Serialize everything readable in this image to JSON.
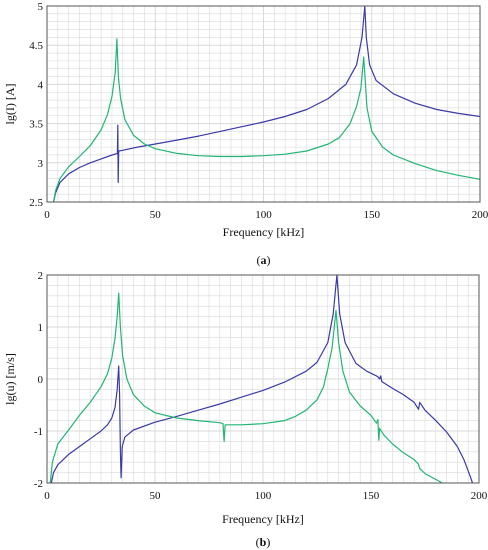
{
  "colors": {
    "blue": "#3a3aa8",
    "green": "#22b573",
    "grid": "#d9d9d9",
    "axis": "#555555"
  },
  "chart_data": [
    {
      "type": "line",
      "caption_prefix": "(",
      "caption_letter": "a",
      "caption_suffix": ")",
      "xlabel": "Frequency [kHz]",
      "ylabel": "lg(I) [A]",
      "xlim": [
        0,
        200
      ],
      "ylim": [
        2.5,
        5
      ],
      "xticks": [
        0,
        50,
        100,
        150,
        200
      ],
      "yticks": [
        2.5,
        3,
        3.5,
        4,
        4.5,
        5
      ],
      "ytick_labels": [
        "2.5",
        "3",
        "3.5",
        "4",
        "4.5",
        "5"
      ],
      "grid": true,
      "series": [
        {
          "color": "blue",
          "points": [
            [
              3,
              2.5
            ],
            [
              4,
              2.62
            ],
            [
              6,
              2.75
            ],
            [
              10,
              2.86
            ],
            [
              15,
              2.94
            ],
            [
              20,
              3.0
            ],
            [
              25,
              3.05
            ],
            [
              30,
              3.1
            ],
            [
              32.5,
              3.12
            ],
            [
              32.7,
              3.48
            ],
            [
              32.9,
              2.75
            ],
            [
              33.1,
              3.15
            ],
            [
              35,
              3.16
            ],
            [
              40,
              3.19
            ],
            [
              50,
              3.24
            ],
            [
              60,
              3.29
            ],
            [
              70,
              3.34
            ],
            [
              80,
              3.4
            ],
            [
              90,
              3.46
            ],
            [
              100,
              3.52
            ],
            [
              110,
              3.59
            ],
            [
              120,
              3.68
            ],
            [
              130,
              3.82
            ],
            [
              138,
              4.0
            ],
            [
              143,
              4.25
            ],
            [
              145.5,
              4.6
            ],
            [
              146.8,
              5.0
            ],
            [
              147.5,
              4.6
            ],
            [
              149,
              4.25
            ],
            [
              152,
              4.05
            ],
            [
              160,
              3.88
            ],
            [
              170,
              3.76
            ],
            [
              180,
              3.68
            ],
            [
              190,
              3.63
            ],
            [
              200,
              3.59
            ]
          ]
        },
        {
          "color": "green",
          "points": [
            [
              3,
              2.5
            ],
            [
              4,
              2.65
            ],
            [
              6,
              2.8
            ],
            [
              10,
              2.95
            ],
            [
              15,
              3.08
            ],
            [
              20,
              3.22
            ],
            [
              25,
              3.42
            ],
            [
              28,
              3.62
            ],
            [
              30,
              3.85
            ],
            [
              31.5,
              4.15
            ],
            [
              32.3,
              4.58
            ],
            [
              33,
              4.1
            ],
            [
              34,
              3.82
            ],
            [
              36,
              3.55
            ],
            [
              40,
              3.35
            ],
            [
              45,
              3.24
            ],
            [
              50,
              3.18
            ],
            [
              60,
              3.12
            ],
            [
              70,
              3.09
            ],
            [
              80,
              3.08
            ],
            [
              90,
              3.08
            ],
            [
              100,
              3.09
            ],
            [
              110,
              3.11
            ],
            [
              120,
              3.15
            ],
            [
              130,
              3.24
            ],
            [
              135,
              3.32
            ],
            [
              140,
              3.5
            ],
            [
              143,
              3.72
            ],
            [
              145,
              3.95
            ],
            [
              146.3,
              4.35
            ],
            [
              147.8,
              3.7
            ],
            [
              150,
              3.4
            ],
            [
              155,
              3.2
            ],
            [
              160,
              3.1
            ],
            [
              170,
              2.99
            ],
            [
              180,
              2.9
            ],
            [
              190,
              2.84
            ],
            [
              200,
              2.79
            ]
          ]
        }
      ]
    },
    {
      "type": "line",
      "caption_prefix": "(",
      "caption_letter": "b",
      "caption_suffix": ")",
      "xlabel": "Frequency [kHz]",
      "ylabel": "lg(u) [m/s]",
      "xlim": [
        0,
        200
      ],
      "ylim": [
        -2,
        2
      ],
      "xticks": [
        0,
        50,
        100,
        150,
        200
      ],
      "yticks": [
        -2,
        -1,
        0,
        1,
        2
      ],
      "ytick_labels": [
        "-2",
        "-1",
        "0",
        "1",
        "2"
      ],
      "grid": true,
      "series": [
        {
          "color": "blue",
          "points": [
            [
              2,
              -2
            ],
            [
              3,
              -1.8
            ],
            [
              5,
              -1.65
            ],
            [
              10,
              -1.45
            ],
            [
              15,
              -1.3
            ],
            [
              20,
              -1.15
            ],
            [
              25,
              -1.0
            ],
            [
              28,
              -0.88
            ],
            [
              30,
              -0.75
            ],
            [
              31.5,
              -0.55
            ],
            [
              32.5,
              -0.2
            ],
            [
              33.2,
              0.25
            ],
            [
              33.6,
              -0.3
            ],
            [
              34,
              -1.4
            ],
            [
              34.3,
              -1.9
            ],
            [
              34.8,
              -1.3
            ],
            [
              36,
              -1.12
            ],
            [
              40,
              -0.98
            ],
            [
              50,
              -0.83
            ],
            [
              60,
              -0.72
            ],
            [
              70,
              -0.6
            ],
            [
              80,
              -0.48
            ],
            [
              90,
              -0.35
            ],
            [
              100,
              -0.22
            ],
            [
              110,
              -0.06
            ],
            [
              120,
              0.15
            ],
            [
              125,
              0.32
            ],
            [
              130,
              0.7
            ],
            [
              132.5,
              1.25
            ],
            [
              134.2,
              2.0
            ],
            [
              135.5,
              1.25
            ],
            [
              138,
              0.7
            ],
            [
              143,
              0.3
            ],
            [
              148,
              0.15
            ],
            [
              153,
              0.05
            ],
            [
              154,
              0.0
            ],
            [
              154.5,
              0.06
            ],
            [
              155,
              -0.05
            ],
            [
              160,
              -0.18
            ],
            [
              165,
              -0.3
            ],
            [
              170,
              -0.45
            ],
            [
              172,
              -0.58
            ],
            [
              172.6,
              -0.45
            ],
            [
              175,
              -0.6
            ],
            [
              180,
              -0.8
            ],
            [
              185,
              -1.02
            ],
            [
              190,
              -1.3
            ],
            [
              193,
              -1.55
            ],
            [
              196,
              -1.88
            ],
            [
              197,
              -2
            ]
          ]
        },
        {
          "color": "green",
          "points": [
            [
              1.5,
              -2
            ],
            [
              2.5,
              -1.6
            ],
            [
              5,
              -1.25
            ],
            [
              10,
              -0.98
            ],
            [
              15,
              -0.7
            ],
            [
              20,
              -0.45
            ],
            [
              25,
              -0.15
            ],
            [
              28,
              0.1
            ],
            [
              30,
              0.4
            ],
            [
              31.5,
              0.78
            ],
            [
              32.5,
              1.2
            ],
            [
              33.2,
              1.65
            ],
            [
              34,
              1.0
            ],
            [
              35,
              0.45
            ],
            [
              37,
              0.0
            ],
            [
              40,
              -0.3
            ],
            [
              45,
              -0.52
            ],
            [
              50,
              -0.65
            ],
            [
              60,
              -0.75
            ],
            [
              70,
              -0.8
            ],
            [
              80,
              -0.84
            ],
            [
              81.5,
              -0.86
            ],
            [
              82,
              -1.2
            ],
            [
              82.5,
              -0.88
            ],
            [
              90,
              -0.88
            ],
            [
              100,
              -0.86
            ],
            [
              110,
              -0.8
            ],
            [
              115,
              -0.72
            ],
            [
              120,
              -0.6
            ],
            [
              125,
              -0.4
            ],
            [
              128,
              -0.15
            ],
            [
              130,
              0.2
            ],
            [
              132,
              0.6
            ],
            [
              133.8,
              1.32
            ],
            [
              135,
              0.7
            ],
            [
              137,
              0.15
            ],
            [
              140,
              -0.25
            ],
            [
              145,
              -0.52
            ],
            [
              150,
              -0.7
            ],
            [
              152.5,
              -0.85
            ],
            [
              153.2,
              -0.78
            ],
            [
              153.6,
              -1.18
            ],
            [
              154,
              -0.95
            ],
            [
              156,
              -1.08
            ],
            [
              160,
              -1.25
            ],
            [
              165,
              -1.42
            ],
            [
              170,
              -1.55
            ],
            [
              172,
              -1.64
            ],
            [
              172.5,
              -1.72
            ],
            [
              175,
              -1.82
            ],
            [
              180,
              -1.93
            ],
            [
              183,
              -2
            ]
          ]
        }
      ]
    }
  ]
}
